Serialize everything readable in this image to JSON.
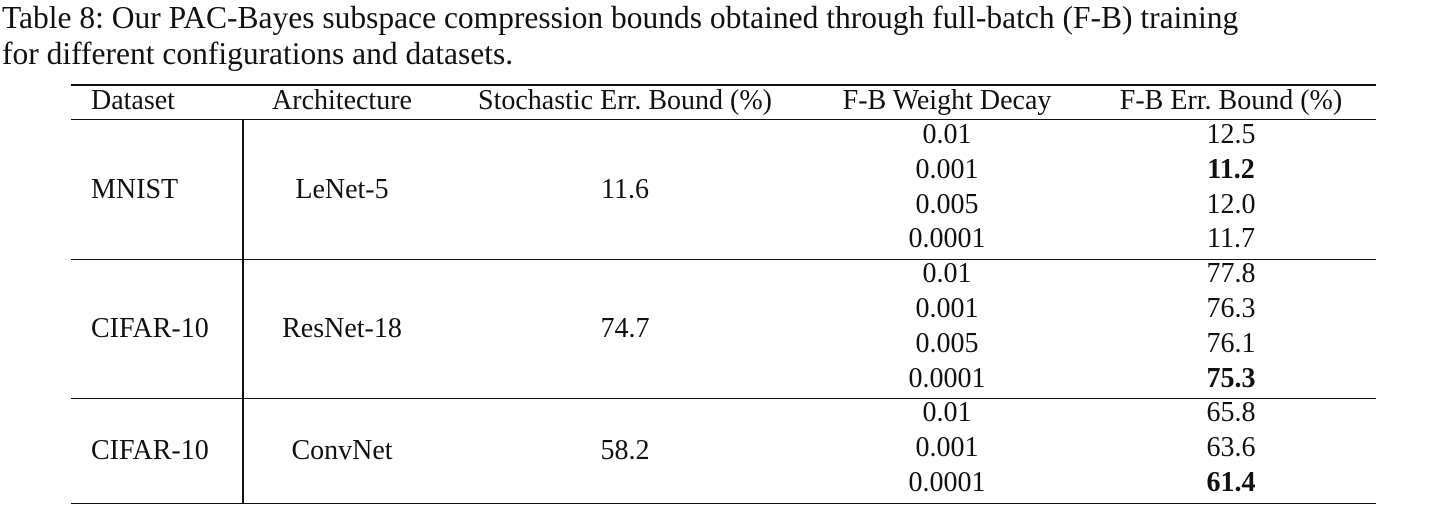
{
  "caption": {
    "line1": "Table 8: Our PAC-Bayes subspace compression bounds obtained through full-batch (F-B) training",
    "line2": "for different configurations and datasets."
  },
  "table": {
    "headers": {
      "dataset": "Dataset",
      "architecture": "Architecture",
      "stochastic": "Stochastic Err. Bound (%)",
      "fb_wd": "F-B Weight Decay",
      "fb_err": "F-B Err. Bound (%)"
    },
    "groups": [
      {
        "dataset": "MNIST",
        "architecture": "LeNet-5",
        "stochastic": "11.6",
        "rows": [
          {
            "wd": "0.01",
            "err": "12.5",
            "bold": false
          },
          {
            "wd": "0.001",
            "err": "11.2",
            "bold": true
          },
          {
            "wd": "0.005",
            "err": "12.0",
            "bold": false
          },
          {
            "wd": "0.0001",
            "err": "11.7",
            "bold": false
          }
        ]
      },
      {
        "dataset": "CIFAR-10",
        "architecture": "ResNet-18",
        "stochastic": "74.7",
        "rows": [
          {
            "wd": "0.01",
            "err": "77.8",
            "bold": false
          },
          {
            "wd": "0.001",
            "err": "76.3",
            "bold": false
          },
          {
            "wd": "0.005",
            "err": "76.1",
            "bold": false
          },
          {
            "wd": "0.0001",
            "err": "75.3",
            "bold": true
          }
        ]
      },
      {
        "dataset": "CIFAR-10",
        "architecture": "ConvNet",
        "stochastic": "58.2",
        "rows": [
          {
            "wd": "0.01",
            "err": "65.8",
            "bold": false
          },
          {
            "wd": "0.001",
            "err": "63.6",
            "bold": false
          },
          {
            "wd": "0.0001",
            "err": "61.4",
            "bold": true
          }
        ]
      }
    ]
  }
}
